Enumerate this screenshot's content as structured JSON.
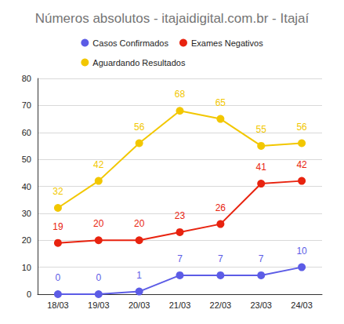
{
  "chart_data": {
    "type": "line",
    "title": "Números absolutos - itajaidigital.com.br - Itajaí",
    "categories": [
      "18/03",
      "19/03",
      "20/03",
      "21/03",
      "22/03",
      "23/03",
      "24/03"
    ],
    "series": [
      {
        "name": "Casos Confirmados",
        "color": "#5c5ce6",
        "values": [
          0,
          0,
          1,
          7,
          7,
          7,
          10
        ]
      },
      {
        "name": "Exames Negativos",
        "color": "#e8230f",
        "values": [
          19,
          20,
          20,
          23,
          26,
          41,
          42
        ]
      },
      {
        "name": "Aguardando Resultados",
        "color": "#f2c700",
        "values": [
          32,
          42,
          56,
          68,
          65,
          55,
          56
        ]
      }
    ],
    "ylim": [
      0,
      80
    ],
    "yticks": [
      0,
      10,
      20,
      30,
      40,
      50,
      60,
      70,
      80
    ],
    "grid": true,
    "legend": "top",
    "data_labels": true,
    "marker": "circle"
  }
}
